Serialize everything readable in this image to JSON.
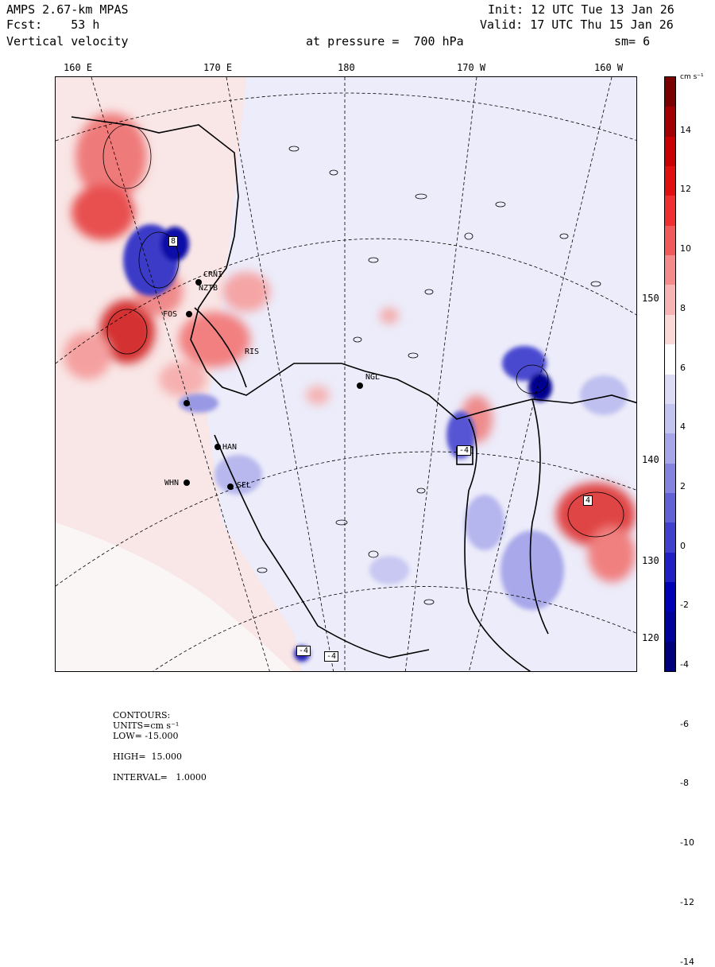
{
  "header": {
    "model": "AMPS 2.67-km MPAS",
    "forecast": "Fcst:    53 h",
    "field": "Vertical velocity",
    "init": "Init: 12 UTC Tue 13 Jan 26",
    "valid": "Valid: 17 UTC Thu 15 Jan 26",
    "pressure": "at pressure =  700 hPa",
    "smoothing": "sm= 6"
  },
  "top_lon_labels": [
    "160 E",
    "170 E",
    "180",
    "170 W",
    "160 W"
  ],
  "right_lon_labels": [
    "150 W",
    "140 W",
    "130 W",
    "120 W"
  ],
  "colorbar": {
    "units": "cm s⁻¹",
    "ticks": [
      "14",
      "12",
      "10",
      "8",
      "6",
      "4",
      "2",
      "0",
      "-2",
      "-4",
      "-6",
      "-8",
      "-10",
      "-12",
      "-14"
    ],
    "colors": [
      "#7a0000",
      "#a00000",
      "#c80000",
      "#e01010",
      "#f03030",
      "#f05a5a",
      "#f58a8a",
      "#f8b4b4",
      "#fad8d8",
      "#ffffff",
      "#dcdcf6",
      "#c4c4f0",
      "#a6a6e8",
      "#8484e0",
      "#6262d6",
      "#4040cc",
      "#2020c2",
      "#0000b4",
      "#00009a",
      "#00007e"
    ]
  },
  "stations": [
    "FOS",
    "NZTB",
    "RIS",
    "NGL",
    "HAN",
    "WHN",
    "SEL",
    "CRNI"
  ],
  "boxed_labels": [
    "8",
    "-4",
    "-4",
    "4",
    "-4"
  ],
  "footer": {
    "contours_label": "CONTOURS:",
    "units_label": "UNITS=cm s⁻¹",
    "low": "LOW= -15.000",
    "high": "HIGH=  15.000",
    "interval": "INTERVAL=   1.0000"
  }
}
